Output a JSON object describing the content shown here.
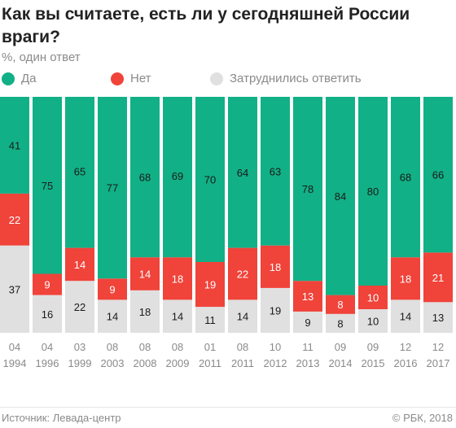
{
  "title": "Как вы считаете, есть ли у сегодняшней России враги?",
  "subtitle": "%, один ответ",
  "source": "Источник: Левада-центр",
  "copyright": "© РБК, 2018",
  "colors": {
    "yes": "#12b086",
    "no": "#f0433a",
    "hard": "#e0e0e0"
  },
  "chart_data": {
    "type": "bar",
    "stacked": true,
    "orientation": "vertical",
    "normalized_to": 100,
    "categories": [
      {
        "month": "04",
        "year": "1994"
      },
      {
        "month": "04",
        "year": "1996"
      },
      {
        "month": "03",
        "year": "1999"
      },
      {
        "month": "08",
        "year": "2003"
      },
      {
        "month": "08",
        "year": "2008"
      },
      {
        "month": "08",
        "year": "2009"
      },
      {
        "month": "01",
        "year": "2011"
      },
      {
        "month": "08",
        "year": "2011"
      },
      {
        "month": "10",
        "year": "2012"
      },
      {
        "month": "11",
        "year": "2013"
      },
      {
        "month": "09",
        "year": "2014"
      },
      {
        "month": "09",
        "year": "2015"
      },
      {
        "month": "12",
        "year": "2016"
      },
      {
        "month": "12",
        "year": "2017"
      }
    ],
    "series": [
      {
        "name": "Да",
        "key": "yes",
        "values": [
          41,
          75,
          65,
          77,
          68,
          69,
          70,
          64,
          63,
          78,
          84,
          80,
          68,
          66
        ]
      },
      {
        "name": "Нет",
        "key": "no",
        "values": [
          22,
          9,
          14,
          9,
          14,
          18,
          19,
          22,
          18,
          13,
          8,
          10,
          18,
          21
        ]
      },
      {
        "name": "Затруднились ответить",
        "key": "hard",
        "values": [
          37,
          16,
          22,
          14,
          18,
          14,
          11,
          14,
          19,
          9,
          8,
          10,
          14,
          13
        ]
      }
    ],
    "legend_position": "top",
    "grid": false
  }
}
